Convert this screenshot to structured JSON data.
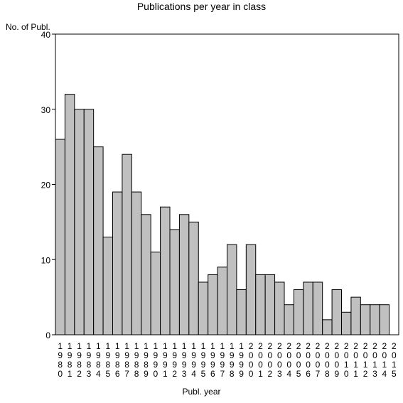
{
  "chart_data": {
    "type": "bar",
    "title": "Publications per year in class",
    "xlabel": "Publ. year",
    "ylabel": "No. of Publ.",
    "ylim": [
      0,
      40
    ],
    "yticks": [
      0,
      10,
      20,
      30,
      40
    ],
    "grid": false,
    "bar_color": "#c0c0c0",
    "edge_color": "#000000",
    "categories": [
      "1980",
      "1981",
      "1982",
      "1983",
      "1984",
      "1985",
      "1986",
      "1987",
      "1988",
      "1989",
      "1990",
      "1991",
      "1992",
      "1993",
      "1994",
      "1995",
      "1996",
      "1997",
      "1998",
      "1999",
      "2000",
      "2001",
      "2002",
      "2003",
      "2004",
      "2005",
      "2006",
      "2007",
      "2008",
      "2009",
      "2010",
      "2011",
      "2012",
      "2013",
      "2014",
      "2015"
    ],
    "values": [
      26,
      32,
      30,
      30,
      25,
      13,
      19,
      24,
      19,
      16,
      11,
      17,
      14,
      16,
      15,
      7,
      8,
      9,
      12,
      6,
      12,
      8,
      8,
      7,
      4,
      6,
      7,
      7,
      2,
      6,
      3,
      5,
      4,
      4,
      4,
      0
    ]
  }
}
